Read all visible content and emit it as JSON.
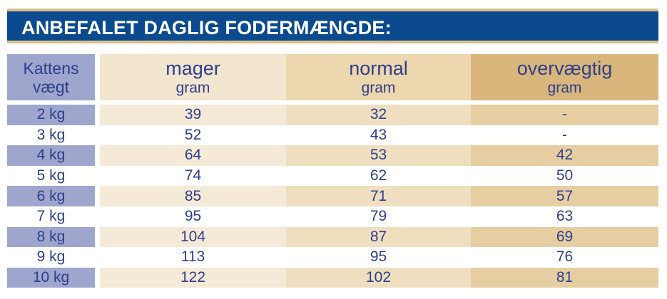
{
  "title": "ANBEFALET DAGLIG FODERMÆNGDE:",
  "header": {
    "weight_line1": "Kattens",
    "weight_line2": "vægt",
    "columns": [
      {
        "name": "mager",
        "unit": "gram"
      },
      {
        "name": "normal",
        "unit": "gram"
      },
      {
        "name": "overvægtig",
        "unit": "gram"
      }
    ]
  },
  "rows": [
    {
      "weight": "2 kg",
      "mager": "39",
      "normal": "32",
      "overvaegtig": "-"
    },
    {
      "weight": "3 kg",
      "mager": "52",
      "normal": "43",
      "overvaegtig": "-"
    },
    {
      "weight": "4 kg",
      "mager": "64",
      "normal": "53",
      "overvaegtig": "42"
    },
    {
      "weight": "5 kg",
      "mager": "74",
      "normal": "62",
      "overvaegtig": "50"
    },
    {
      "weight": "6 kg",
      "mager": "85",
      "normal": "71",
      "overvaegtig": "57"
    },
    {
      "weight": "7 kg",
      "mager": "95",
      "normal": "79",
      "overvaegtig": "63"
    },
    {
      "weight": "8 kg",
      "mager": "104",
      "normal": "87",
      "overvaegtig": "69"
    },
    {
      "weight": "9 kg",
      "mager": "113",
      "normal": "95",
      "overvaegtig": "76"
    },
    {
      "weight": "10 kg",
      "mager": "122",
      "normal": "102",
      "overvaegtig": "81"
    }
  ],
  "colors": {
    "title_bg": "#0b4a8e",
    "title_border": "#d8c18c",
    "text": "#2d3e8c",
    "weight_col": "#9ea6cd",
    "mager_col": "#f2e6cf",
    "normal_col": "#ecd7ae",
    "overvaegtig_col": "#d9b67c"
  }
}
